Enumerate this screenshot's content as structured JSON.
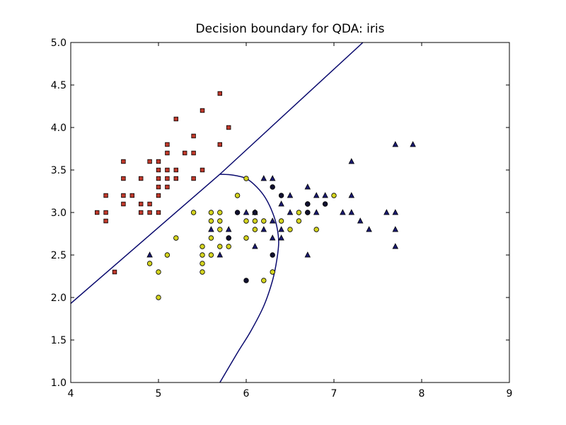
{
  "chart_data": {
    "type": "scatter",
    "title": "Decision boundary for QDA: iris",
    "xlabel": "",
    "ylabel": "",
    "xlim": [
      4,
      9
    ],
    "ylim": [
      1.0,
      5.0
    ],
    "x_ticks": [
      "4",
      "5",
      "6",
      "7",
      "8",
      "9"
    ],
    "x_tick_values": [
      4,
      5,
      6,
      7,
      8,
      9
    ],
    "y_ticks": [
      "1.0",
      "1.5",
      "2.0",
      "2.5",
      "3.0",
      "3.5",
      "4.0",
      "4.5",
      "5.0"
    ],
    "y_tick_values": [
      1.0,
      1.5,
      2.0,
      2.5,
      3.0,
      3.5,
      4.0,
      4.5,
      5.0
    ],
    "grid": false,
    "colors": {
      "class_square": "#c0392b",
      "class_circle": "#d4d41f",
      "class_triangle": "#1a1a6e",
      "class_black_circle": "#101030",
      "boundary": "#0a0a6e"
    },
    "boundaries": [
      {
        "kind": "line",
        "points": [
          [
            4.0,
            1.93
          ],
          [
            5.7,
            3.45
          ],
          [
            7.33,
            5.0
          ]
        ]
      },
      {
        "kind": "curve",
        "points": [
          [
            5.7,
            3.45
          ],
          [
            5.85,
            3.44
          ],
          [
            6.0,
            3.4
          ],
          [
            6.12,
            3.3
          ],
          [
            6.22,
            3.17
          ],
          [
            6.3,
            3.0
          ],
          [
            6.35,
            2.83
          ],
          [
            6.37,
            2.65
          ],
          [
            6.35,
            2.45
          ],
          [
            6.3,
            2.2
          ],
          [
            6.2,
            1.9
          ],
          [
            6.05,
            1.6
          ],
          [
            5.9,
            1.35
          ],
          [
            5.7,
            1.0
          ]
        ]
      }
    ],
    "series": [
      {
        "marker": "square",
        "points": [
          [
            4.3,
            3.0
          ],
          [
            4.4,
            3.2
          ],
          [
            4.4,
            3.0
          ],
          [
            4.4,
            2.9
          ],
          [
            4.5,
            2.3
          ],
          [
            4.6,
            3.6
          ],
          [
            4.6,
            3.4
          ],
          [
            4.6,
            3.2
          ],
          [
            4.6,
            3.1
          ],
          [
            4.7,
            3.2
          ],
          [
            4.8,
            3.4
          ],
          [
            4.8,
            3.1
          ],
          [
            4.8,
            3.0
          ],
          [
            4.9,
            3.6
          ],
          [
            4.9,
            3.1
          ],
          [
            4.9,
            3.0
          ],
          [
            5.0,
            3.6
          ],
          [
            5.0,
            3.5
          ],
          [
            5.0,
            3.4
          ],
          [
            5.0,
            3.3
          ],
          [
            5.0,
            3.2
          ],
          [
            5.0,
            3.0
          ],
          [
            5.1,
            3.8
          ],
          [
            5.1,
            3.7
          ],
          [
            5.1,
            3.5
          ],
          [
            5.1,
            3.4
          ],
          [
            5.1,
            3.3
          ],
          [
            5.2,
            4.1
          ],
          [
            5.2,
            3.5
          ],
          [
            5.2,
            3.4
          ],
          [
            5.3,
            3.7
          ],
          [
            5.4,
            3.9
          ],
          [
            5.4,
            3.7
          ],
          [
            5.4,
            3.4
          ],
          [
            5.5,
            4.2
          ],
          [
            5.5,
            3.5
          ],
          [
            5.7,
            4.4
          ],
          [
            5.7,
            3.8
          ],
          [
            5.8,
            4.0
          ]
        ]
      },
      {
        "marker": "circle",
        "points": [
          [
            4.9,
            2.4
          ],
          [
            5.0,
            2.3
          ],
          [
            5.0,
            2.0
          ],
          [
            5.1,
            2.5
          ],
          [
            5.2,
            2.7
          ],
          [
            5.4,
            3.0
          ],
          [
            5.5,
            2.6
          ],
          [
            5.5,
            2.5
          ],
          [
            5.5,
            2.4
          ],
          [
            5.5,
            2.3
          ],
          [
            5.6,
            3.0
          ],
          [
            5.6,
            2.9
          ],
          [
            5.6,
            2.7
          ],
          [
            5.6,
            2.5
          ],
          [
            5.7,
            3.0
          ],
          [
            5.7,
            2.9
          ],
          [
            5.7,
            2.8
          ],
          [
            5.7,
            2.6
          ],
          [
            5.8,
            2.7
          ],
          [
            5.8,
            2.6
          ],
          [
            5.9,
            3.2
          ],
          [
            6.0,
            3.4
          ],
          [
            6.0,
            2.9
          ],
          [
            6.0,
            2.7
          ],
          [
            6.1,
            3.0
          ],
          [
            6.1,
            2.9
          ],
          [
            6.1,
            2.8
          ],
          [
            6.2,
            2.9
          ],
          [
            6.2,
            2.2
          ],
          [
            6.3,
            2.3
          ],
          [
            6.4,
            2.9
          ],
          [
            6.5,
            2.8
          ],
          [
            6.6,
            3.0
          ],
          [
            6.6,
            2.9
          ],
          [
            6.7,
            3.1
          ],
          [
            6.7,
            3.0
          ],
          [
            6.8,
            2.8
          ],
          [
            7.0,
            3.2
          ]
        ]
      },
      {
        "marker": "triangle",
        "points": [
          [
            4.9,
            2.5
          ],
          [
            5.6,
            2.8
          ],
          [
            5.7,
            2.5
          ],
          [
            5.8,
            2.8
          ],
          [
            6.0,
            3.0
          ],
          [
            6.1,
            3.0
          ],
          [
            6.1,
            2.6
          ],
          [
            6.2,
            3.4
          ],
          [
            6.2,
            2.8
          ],
          [
            6.3,
            3.4
          ],
          [
            6.3,
            2.9
          ],
          [
            6.3,
            2.7
          ],
          [
            6.4,
            3.1
          ],
          [
            6.4,
            2.8
          ],
          [
            6.4,
            2.7
          ],
          [
            6.5,
            3.2
          ],
          [
            6.5,
            3.0
          ],
          [
            6.7,
            3.3
          ],
          [
            6.7,
            2.5
          ],
          [
            6.8,
            3.2
          ],
          [
            6.8,
            3.0
          ],
          [
            6.9,
            3.2
          ],
          [
            7.1,
            3.0
          ],
          [
            7.2,
            3.6
          ],
          [
            7.2,
            3.2
          ],
          [
            7.2,
            3.0
          ],
          [
            7.3,
            2.9
          ],
          [
            7.4,
            2.8
          ],
          [
            7.6,
            3.0
          ],
          [
            7.7,
            3.8
          ],
          [
            7.7,
            3.0
          ],
          [
            7.7,
            2.8
          ],
          [
            7.7,
            2.6
          ],
          [
            7.9,
            3.8
          ]
        ]
      },
      {
        "marker": "black-circle",
        "points": [
          [
            5.8,
            2.7
          ],
          [
            5.9,
            3.0
          ],
          [
            6.0,
            2.2
          ],
          [
            6.1,
            3.0
          ],
          [
            6.3,
            3.3
          ],
          [
            6.3,
            2.5
          ],
          [
            6.4,
            3.2
          ],
          [
            6.7,
            3.1
          ],
          [
            6.7,
            3.0
          ],
          [
            6.9,
            3.1
          ]
        ]
      }
    ]
  }
}
